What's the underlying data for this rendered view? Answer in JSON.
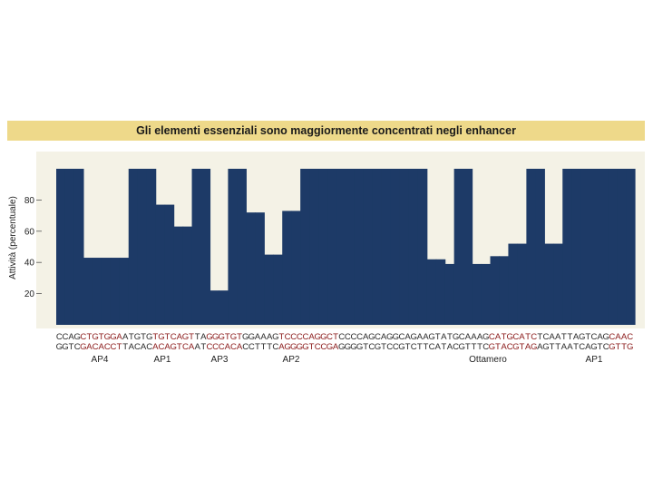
{
  "title": "Gli elementi essenziali sono maggiormente concentrati negli enhancer",
  "chart_data": {
    "type": "bar",
    "ylabel": "Attività (percentuale)",
    "yticks": [
      20,
      40,
      60,
      80
    ],
    "ylim": [
      0,
      104
    ],
    "grid": false,
    "values": [
      100,
      100,
      100,
      43,
      43,
      43,
      43,
      43,
      100,
      100,
      100,
      77,
      77,
      63,
      63,
      100,
      100,
      22,
      22,
      100,
      100,
      72,
      72,
      45,
      45,
      73,
      73,
      100,
      100,
      100,
      100,
      100,
      100,
      100,
      100,
      100,
      100,
      100,
      100,
      100,
      100,
      42,
      42,
      39,
      100,
      100,
      39,
      39,
      44,
      44,
      52,
      52,
      100,
      100,
      52,
      52,
      100,
      100,
      100,
      100,
      100,
      100,
      100,
      100
    ],
    "sequence_top": "CCAGCTGTGGAATGTGTGTCAGTTAGGGTGTGGAAAGTCCCCAGGCTCCCCAGCAGGCAGAAGTATGCAAAGCATGCATCTCAATTAGTCAGCAAC",
    "sequence_bottom": "GGTCGACACCTTACACACAGTCAATCCCACACCTTTCAGGGGTCCGAGGGGTCGTCCGTCTTCATACGTTTCGTACGTAGAGTTAATCAGTCGTTG",
    "highlighted_ranges": [
      [
        4,
        11
      ],
      [
        16,
        23
      ],
      [
        25,
        31
      ],
      [
        37,
        47
      ],
      [
        72,
        80
      ],
      [
        92,
        96
      ]
    ],
    "elements": [
      {
        "label": "AP4",
        "position": 10
      },
      {
        "label": "AP1",
        "position": 23
      },
      {
        "label": "AP3",
        "position": 35
      },
      {
        "label": "AP2",
        "position": 52
      },
      {
        "label": "Ottamero",
        "position": 81
      },
      {
        "label": "AP1",
        "position": 124
      }
    ],
    "colors": {
      "bar": "#1d3a67",
      "background": "#f4f2e6",
      "highlight_text": "#8b1a1a",
      "normal_text": "#2a2a2a",
      "title_bar": "#eed98a"
    }
  }
}
